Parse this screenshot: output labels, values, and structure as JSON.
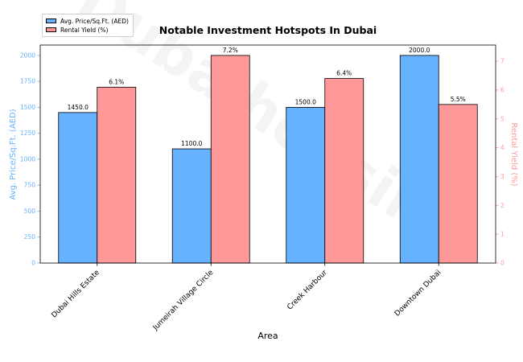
{
  "chart_data": {
    "type": "bar",
    "title": "Notable Investment Hotspots In Dubai",
    "xlabel": "Area",
    "categories": [
      "Dubai Hills Estate",
      "Jumeirah Village Circle",
      "Creek Harbour",
      "Downtown Dubai"
    ],
    "series": [
      {
        "name": "Avg. Price/Sq.Ft. (AED)",
        "axis": "left",
        "color": "#66b2ff",
        "values": [
          1450.0,
          1100.0,
          1500.0,
          2000.0
        ],
        "labels": [
          "1450.0",
          "1100.0",
          "1500.0",
          "2000.0"
        ]
      },
      {
        "name": "Rental Yield (%)",
        "axis": "right",
        "color": "#ff9999",
        "values": [
          6.1,
          7.2,
          6.4,
          5.5
        ],
        "labels": [
          "6.1%",
          "7.2%",
          "6.4%",
          "5.5%"
        ]
      }
    ],
    "y_left": {
      "label": "Avg. Price/Sq.Ft. (AED)",
      "ylim": [
        0,
        2100
      ],
      "ticks": [
        0,
        250,
        500,
        750,
        1000,
        1250,
        1500,
        1750,
        2000
      ],
      "color": "#66b2ff"
    },
    "y_right": {
      "label": "Rental Yield (%)",
      "ylim": [
        0,
        7.56
      ],
      "ticks": [
        0,
        1,
        2,
        3,
        4,
        5,
        6,
        7
      ],
      "color": "#ff9999"
    },
    "legend_position": "top-left",
    "watermark": "Dubaihousing"
  }
}
